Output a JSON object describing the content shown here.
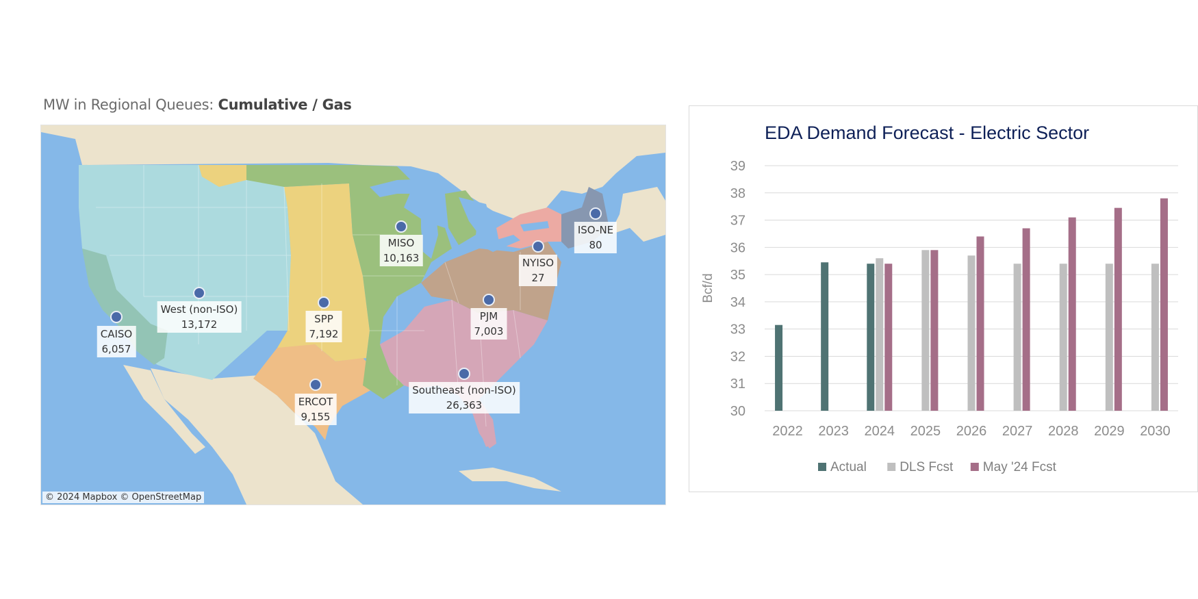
{
  "map": {
    "title_prefix": "MW in Regional Queues:",
    "title_mode": "Cumulative / Gas",
    "attribution": "© 2024 Mapbox  © OpenStreetMap",
    "colors": {
      "ocean": "#85b8e8",
      "land": "#ece3cc",
      "west": "#acdade",
      "caiso": "#93c4b5",
      "spp": "#ecd27e",
      "miso": "#9bc07d",
      "ercot": "#efbe86",
      "southeast": "#d5a6b7",
      "pjm": "#c0a38b",
      "nyiso": "#ecaaa3",
      "isone": "#8797b0",
      "dot": "#4a6aa8"
    },
    "regions": [
      {
        "id": "caiso",
        "name": "CAISO",
        "value": "6,057"
      },
      {
        "id": "west",
        "name": "West (non-ISO)",
        "value": "13,172"
      },
      {
        "id": "spp",
        "name": "SPP",
        "value": "7,192"
      },
      {
        "id": "ercot",
        "name": "ERCOT",
        "value": "9,155"
      },
      {
        "id": "miso",
        "name": "MISO",
        "value": "10,163"
      },
      {
        "id": "southeast",
        "name": "Southeast (non-ISO)",
        "value": "26,363"
      },
      {
        "id": "pjm",
        "name": "PJM",
        "value": "7,003"
      },
      {
        "id": "nyiso",
        "name": "NYISO",
        "value": "27"
      },
      {
        "id": "isone",
        "name": "ISO-NE",
        "value": "80"
      }
    ]
  },
  "chart_data": {
    "type": "bar",
    "title": "EDA Demand Forecast - Electric Sector",
    "ylabel": "Bcf/d",
    "xlabel": "",
    "ylim": [
      30,
      39
    ],
    "yticks": [
      30,
      31,
      32,
      33,
      34,
      35,
      36,
      37,
      38,
      39
    ],
    "categories": [
      "2022",
      "2023",
      "2024",
      "2025",
      "2026",
      "2027",
      "2028",
      "2029",
      "2030"
    ],
    "series": [
      {
        "name": "Actual",
        "color": "#4f7373",
        "values": [
          33.15,
          35.45,
          35.4,
          null,
          null,
          null,
          null,
          null,
          null
        ]
      },
      {
        "name": "DLS Fcst",
        "color": "#bfbfbf",
        "values": [
          null,
          null,
          35.6,
          35.9,
          35.7,
          35.4,
          35.4,
          35.4,
          35.4
        ]
      },
      {
        "name": "May '24 Fcst",
        "color": "#a56e88",
        "values": [
          null,
          null,
          35.4,
          35.9,
          36.4,
          36.7,
          37.1,
          37.45,
          37.8
        ]
      }
    ],
    "grid": true,
    "legend": "bottom",
    "title_color": "#0e2057"
  }
}
